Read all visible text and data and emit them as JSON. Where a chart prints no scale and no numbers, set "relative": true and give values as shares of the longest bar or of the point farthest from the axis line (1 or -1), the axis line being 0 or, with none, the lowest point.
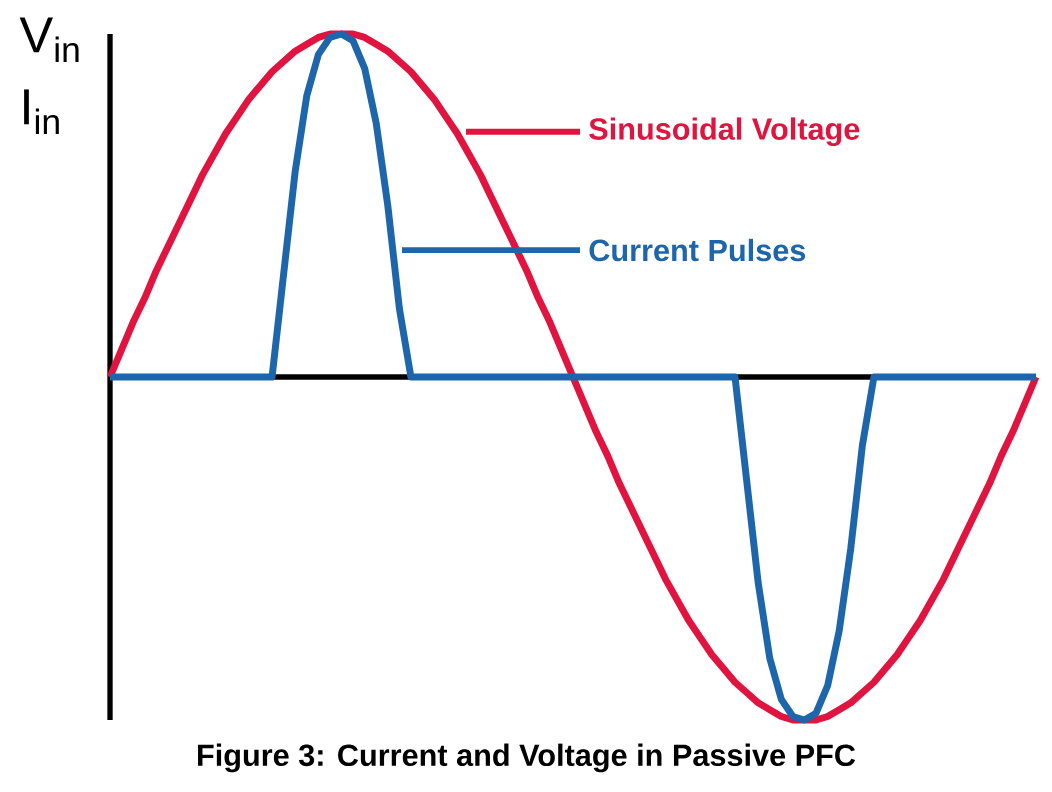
{
  "chart_data": {
    "type": "line",
    "relative": true,
    "title": "Figure 3: Current and Voltage in Passive PFC",
    "ylabel": "V$_{in}$ I$_{in}$",
    "categories": [
      null,
      null,
      null,
      null,
      null,
      null,
      null,
      null,
      null,
      null,
      null,
      null,
      null,
      null,
      null,
      null,
      null,
      null,
      null,
      null,
      null,
      null,
      null,
      null,
      null,
      null,
      null,
      null,
      null,
      null,
      null,
      null,
      null,
      null,
      null,
      null,
      null,
      null,
      null,
      null,
      null,
      null,
      null,
      null,
      null,
      null,
      null,
      null,
      null,
      null,
      null,
      null,
      null,
      null,
      null,
      null,
      null,
      null,
      null,
      null,
      null,
      null,
      null,
      null,
      null,
      null,
      null,
      null,
      null,
      null,
      null,
      null,
      null,
      null,
      null,
      null,
      null,
      null,
      null,
      null,
      null
    ],
    "series": [
      {
        "name": "Sinusoidal Voltage",
        "color": "#e0143f",
        "values": [
          0,
          0.08,
          0.16,
          0.23,
          0.31,
          0.38,
          0.45,
          0.52,
          0.59,
          0.65,
          0.71,
          0.76,
          0.81,
          0.85,
          0.89,
          0.92,
          0.95,
          0.97,
          0.99,
          1,
          1,
          1,
          0.99,
          0.97,
          0.95,
          0.92,
          0.89,
          0.85,
          0.81,
          0.76,
          0.71,
          0.65,
          0.59,
          0.52,
          0.45,
          0.38,
          0.31,
          0.23,
          0.16,
          0.08,
          0,
          -0.08,
          -0.16,
          -0.23,
          -0.31,
          -0.38,
          -0.45,
          -0.52,
          -0.59,
          -0.65,
          -0.71,
          -0.76,
          -0.81,
          -0.85,
          -0.89,
          -0.92,
          -0.95,
          -0.97,
          -0.99,
          -1,
          -1,
          -1,
          -0.99,
          -0.97,
          -0.95,
          -0.92,
          -0.89,
          -0.85,
          -0.81,
          -0.76,
          -0.71,
          -0.65,
          -0.59,
          -0.52,
          -0.45,
          -0.38,
          -0.31,
          -0.23,
          -0.16,
          -0.08,
          0
        ]
      },
      {
        "name": "Current Pulses",
        "color": "#1d66ab",
        "values": [
          0,
          0,
          0,
          0,
          0,
          0,
          0,
          0,
          0,
          0,
          0,
          0,
          0,
          0,
          0,
          0.3,
          0.6,
          0.82,
          0.94,
          0.99,
          1,
          0.98,
          0.9,
          0.74,
          0.5,
          0.2,
          0,
          0,
          0,
          0,
          0,
          0,
          0,
          0,
          0,
          0,
          0,
          0,
          0,
          0,
          0,
          0,
          0,
          0,
          0,
          0,
          0,
          0,
          0,
          0,
          0,
          0,
          0,
          0,
          0,
          -0.3,
          -0.6,
          -0.82,
          -0.94,
          -0.99,
          -1,
          -0.98,
          -0.9,
          -0.74,
          -0.5,
          -0.2,
          0,
          0,
          0,
          0,
          0,
          0,
          0,
          0,
          0,
          0,
          0,
          0,
          0,
          0,
          0
        ]
      }
    ]
  }
}
